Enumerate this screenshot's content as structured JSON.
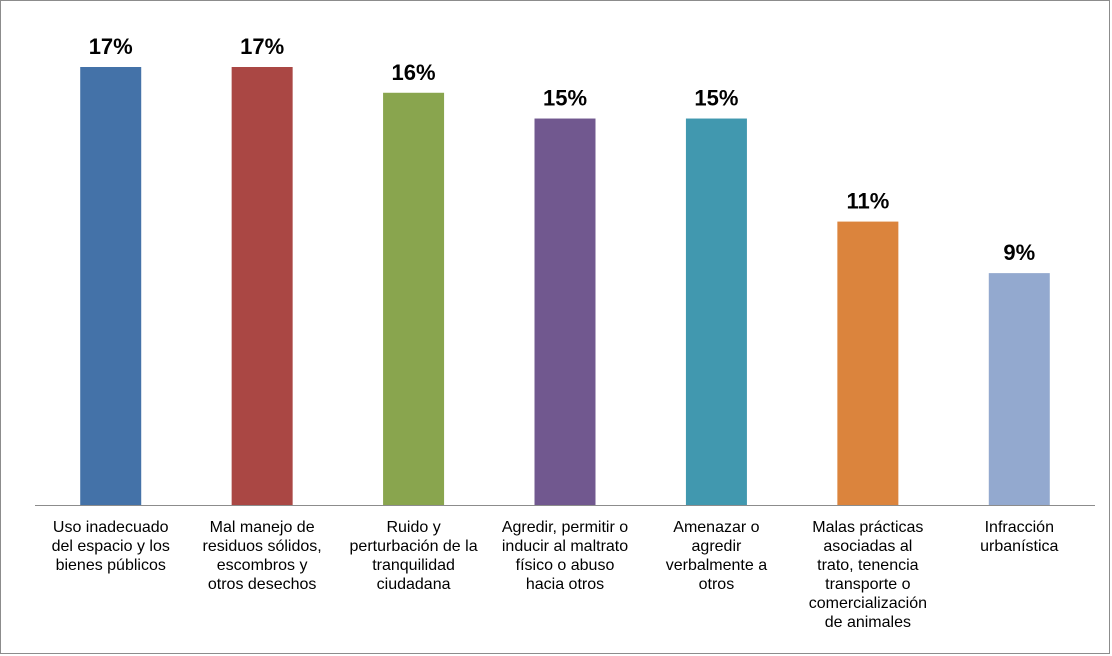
{
  "chart_data": {
    "type": "bar",
    "title": "",
    "xlabel": "",
    "ylabel": "",
    "ylim": [
      0,
      17
    ],
    "grid": false,
    "legend": "none",
    "categories": [
      [
        "Uso inadecuado",
        "del espacio y los",
        "bienes públicos"
      ],
      [
        "Mal manejo de",
        "residuos sólidos,",
        "escombros y",
        "otros desechos"
      ],
      [
        "Ruido y",
        "perturbación de la",
        "tranquilidad",
        "ciudadana"
      ],
      [
        "Agredir, permitir o",
        "inducir al maltrato",
        "físico o abuso",
        "hacia otros"
      ],
      [
        "Amenazar o",
        "agredir",
        "verbalmente a",
        "otros"
      ],
      [
        "Malas prácticas",
        "asociadas al",
        "trato, tenencia",
        "transporte o",
        "comercialización",
        "de animales"
      ],
      [
        "Infracción",
        "urbanística"
      ]
    ],
    "values": [
      17,
      17,
      16,
      15,
      15,
      11,
      9
    ],
    "data_labels": [
      "17%",
      "17%",
      "16%",
      "15%",
      "15%",
      "11%",
      "9%"
    ],
    "colors": [
      "#4472a8",
      "#aa4744",
      "#89a54e",
      "#71588f",
      "#4198af",
      "#db843d",
      "#93a9cf"
    ]
  }
}
